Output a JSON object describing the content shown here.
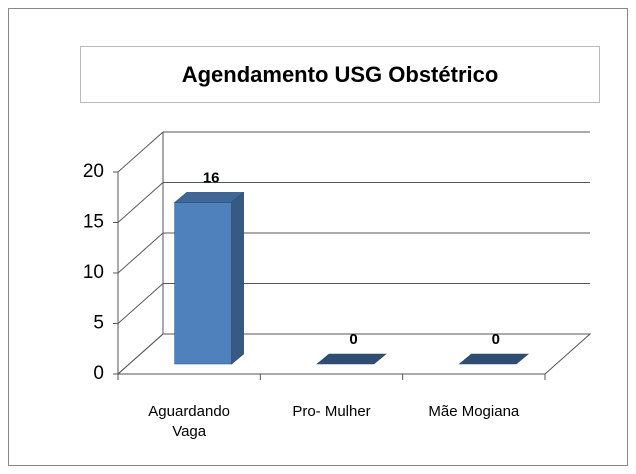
{
  "chart_data": {
    "type": "bar",
    "title": "Agendamento USG Obstétrico",
    "categories": [
      "Aguardando Vaga",
      "Pro- Mulher",
      "Mãe Mogiana"
    ],
    "values": [
      16,
      0,
      0
    ],
    "color": "#4f81bd",
    "ylim": [
      0,
      20
    ],
    "yticks": [
      0,
      5,
      10,
      15,
      20
    ],
    "grid": true
  }
}
